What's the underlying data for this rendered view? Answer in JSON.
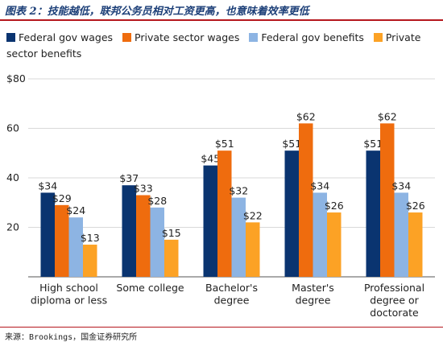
{
  "header": {
    "title": "图表 2：技能越低，联邦公务员相对工资更高，也意味着效率更低"
  },
  "footer": {
    "source": "来源：Brookings，国金证券研究所"
  },
  "chart_data": {
    "type": "bar",
    "title": "",
    "xlabel": "",
    "ylabel": "",
    "ylim": [
      0,
      80
    ],
    "yticks": [
      "$80",
      "60",
      "40",
      "20"
    ],
    "grid": true,
    "legend_position": "top",
    "categories": [
      [
        "High school",
        "diploma or less"
      ],
      [
        "Some college"
      ],
      [
        "Bachelor's",
        "degree"
      ],
      [
        "Master's",
        "degree"
      ],
      [
        "Professional",
        "degree or",
        "doctorate"
      ]
    ],
    "series": [
      {
        "name": "Federal gov wages",
        "color": "#0a3470",
        "values": [
          34,
          37,
          45,
          51,
          51
        ],
        "labels": [
          "$34",
          "$37",
          "$45",
          "$51",
          "$51"
        ]
      },
      {
        "name": "Private sector wages",
        "color": "#ef6c0e",
        "values": [
          29,
          33,
          51,
          62,
          62
        ],
        "labels": [
          "$29",
          "$33",
          "$51",
          "$62",
          "$62"
        ]
      },
      {
        "name": "Federal gov benefits",
        "color": "#8db4e3",
        "values": [
          24,
          28,
          32,
          34,
          34
        ],
        "labels": [
          "$24",
          "$28",
          "$32",
          "$34",
          "$34"
        ]
      },
      {
        "name": "Private sector benefits",
        "color": "#fca225",
        "values": [
          13,
          15,
          22,
          26,
          26
        ],
        "labels": [
          "$13",
          "$15",
          "$22",
          "$26",
          "$26"
        ]
      }
    ]
  }
}
